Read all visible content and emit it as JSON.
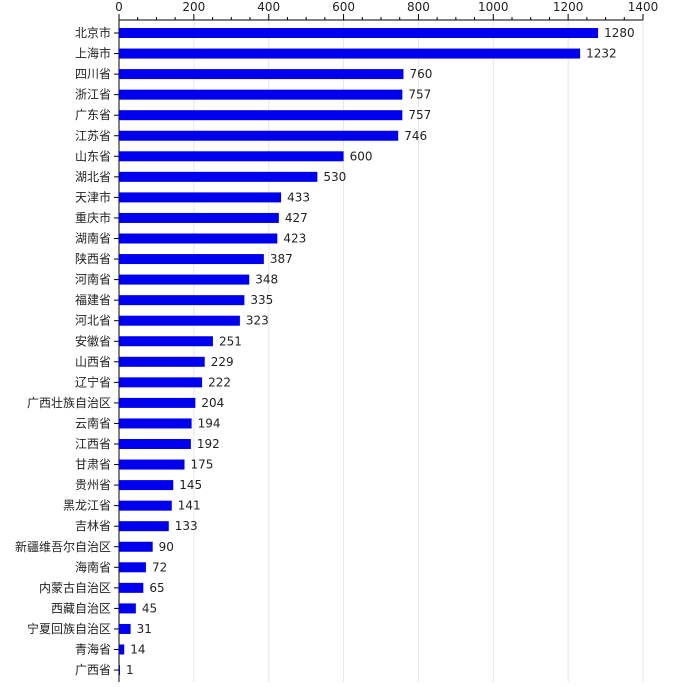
{
  "chart_data": {
    "type": "bar",
    "orientation": "horizontal",
    "xlim": [
      0,
      1400
    ],
    "x_ticks": [
      0,
      200,
      400,
      600,
      800,
      1000,
      1200,
      1400
    ],
    "x_axis_position": "top",
    "grid": "vertical",
    "bar_color": "#0000ee",
    "categories": [
      "北京市",
      "上海市",
      "四川省",
      "浙江省",
      "广东省",
      "江苏省",
      "山东省",
      "湖北省",
      "天津市",
      "重庆市",
      "湖南省",
      "陕西省",
      "河南省",
      "福建省",
      "河北省",
      "安徽省",
      "山西省",
      "辽宁省",
      "广西壮族自治区",
      "云南省",
      "江西省",
      "甘肃省",
      "贵州省",
      "黑龙江省",
      "吉林省",
      "新疆维吾尔自治区",
      "海南省",
      "内蒙古自治区",
      "西藏自治区",
      "宁夏回族自治区",
      "青海省",
      "广西省"
    ],
    "values": [
      1280,
      1232,
      760,
      757,
      757,
      746,
      600,
      530,
      433,
      427,
      423,
      387,
      348,
      335,
      323,
      251,
      229,
      222,
      204,
      194,
      192,
      175,
      145,
      141,
      133,
      90,
      72,
      65,
      45,
      31,
      14,
      1
    ]
  }
}
